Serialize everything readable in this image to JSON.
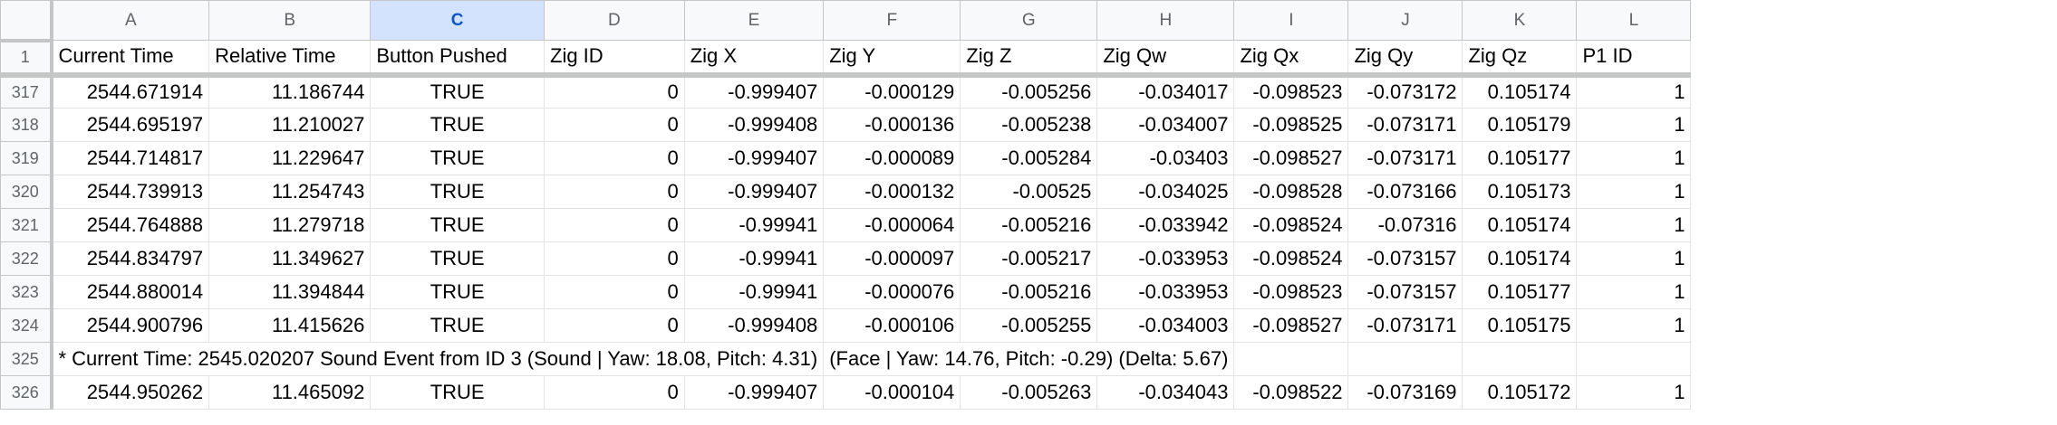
{
  "columns": [
    "A",
    "B",
    "C",
    "D",
    "E",
    "F",
    "G",
    "H",
    "I",
    "J",
    "K",
    "L"
  ],
  "selected_column": "C",
  "header_row": {
    "num": "1",
    "cells": [
      "Current Time",
      "Relative Time",
      "Button Pushed",
      "Zig ID",
      "Zig X",
      "Zig Y",
      "Zig Z",
      "Zig Qw",
      "Zig Qx",
      "Zig Qy",
      "Zig Qz",
      "P1 ID"
    ]
  },
  "rows": [
    {
      "num": "317",
      "cells": [
        "2544.671914",
        "11.186744",
        "TRUE",
        "0",
        "-0.999407",
        "-0.000129",
        "-0.005256",
        "-0.034017",
        "-0.098523",
        "-0.073172",
        "0.105174",
        "1"
      ]
    },
    {
      "num": "318",
      "cells": [
        "2544.695197",
        "11.210027",
        "TRUE",
        "0",
        "-0.999408",
        "-0.000136",
        "-0.005238",
        "-0.034007",
        "-0.098525",
        "-0.073171",
        "0.105179",
        "1"
      ]
    },
    {
      "num": "319",
      "cells": [
        "2544.714817",
        "11.229647",
        "TRUE",
        "0",
        "-0.999407",
        "-0.000089",
        "-0.005284",
        "-0.03403",
        "-0.098527",
        "-0.073171",
        "0.105177",
        "1"
      ]
    },
    {
      "num": "320",
      "cells": [
        "2544.739913",
        "11.254743",
        "TRUE",
        "0",
        "-0.999407",
        "-0.000132",
        "-0.00525",
        "-0.034025",
        "-0.098528",
        "-0.073166",
        "0.105173",
        "1"
      ]
    },
    {
      "num": "321",
      "cells": [
        "2544.764888",
        "11.279718",
        "TRUE",
        "0",
        "-0.99941",
        "-0.000064",
        "-0.005216",
        "-0.033942",
        "-0.098524",
        "-0.07316",
        "0.105174",
        "1"
      ]
    },
    {
      "num": "322",
      "cells": [
        "2544.834797",
        "11.349627",
        "TRUE",
        "0",
        "-0.99941",
        "-0.000097",
        "-0.005217",
        "-0.033953",
        "-0.098524",
        "-0.073157",
        "0.105174",
        "1"
      ]
    },
    {
      "num": "323",
      "cells": [
        "2544.880014",
        "11.394844",
        "TRUE",
        "0",
        "-0.99941",
        "-0.000076",
        "-0.005216",
        "-0.033953",
        "-0.098523",
        "-0.073157",
        "0.105177",
        "1"
      ]
    },
    {
      "num": "324",
      "cells": [
        "2544.900796",
        "11.415626",
        "TRUE",
        "0",
        "-0.999408",
        "-0.000106",
        "-0.005255",
        "-0.034003",
        "-0.098527",
        "-0.073171",
        "0.105175",
        "1"
      ]
    }
  ],
  "note_row": {
    "num": "325",
    "text_a": "* Current Time: 2545.020207 Sound Event from ID 3 (Sound | Yaw: 18.08, Pitch: 4.31)",
    "text_f": "(Face | Yaw: 14.76, Pitch: -0.29) (Delta: 5.67)"
  },
  "last_row": {
    "num": "326",
    "cells": [
      "2544.950262",
      "11.465092",
      "TRUE",
      "0",
      "-0.999407",
      "-0.000104",
      "-0.005263",
      "-0.034043",
      "-0.098522",
      "-0.073169",
      "0.105172",
      "1"
    ]
  }
}
